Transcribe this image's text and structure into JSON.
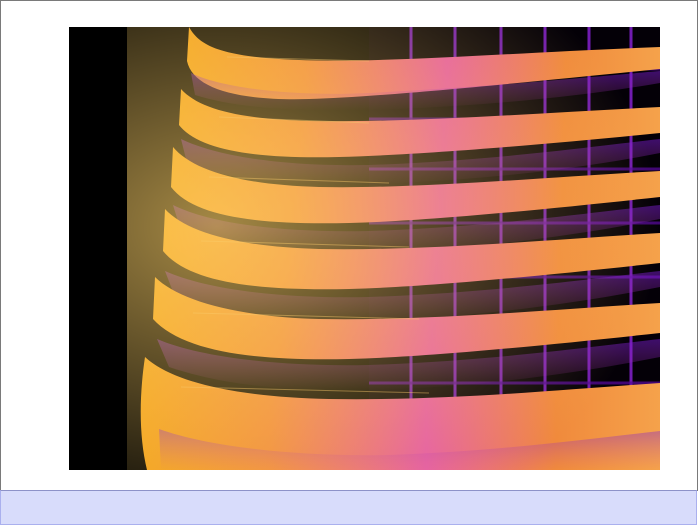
{
  "image": {
    "subject": "thermal-building-facade",
    "palette": [
      "#000000",
      "#3a0a6a",
      "#8a18c4",
      "#c83ca8",
      "#ea6a5e",
      "#f59a2a",
      "#f7b33a"
    ]
  },
  "caption_bar": {
    "text": "",
    "bg_color": "#d8dcfb"
  }
}
